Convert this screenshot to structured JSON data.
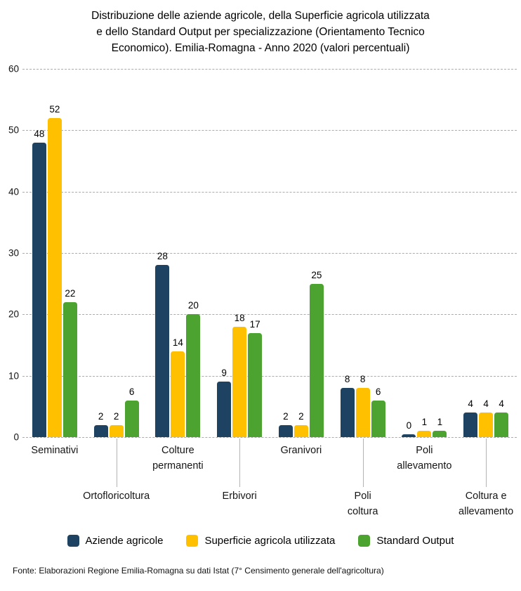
{
  "title": "Distribuzione delle aziende agricole, della Superficie agricola utilizzata\ne dello Standard Output per specializzazione (Orientamento Tecnico\nEconomico). Emilia-Romagna - Anno 2020 (valori percentuali)",
  "source": "Fonte: Elaborazioni Regione Emilia-Romagna su dati Istat (7° Censimento generale dell'agricoltura)",
  "colors": {
    "aziende": "#1E4362",
    "superficie": "#FFC000",
    "standard_output": "#4DA32F",
    "gridline": "#ABABAB",
    "category_tick": "#B3B3B3"
  },
  "chart_data": {
    "type": "bar",
    "title": "Distribuzione delle aziende agricole, della Superficie agricola utilizzata e dello Standard Output per specializzazione (Orientamento Tecnico Economico). Emilia-Romagna - Anno 2020 (valori percentuali)",
    "categories": [
      "Seminativi",
      "Ortofloricoltura",
      "Colture\npermanenti",
      "Erbivori",
      "Granivori",
      "Poli\ncoltura",
      "Poli\nallevamento",
      "Coltura e\nallevamento"
    ],
    "category_label_rows": [
      1,
      2,
      1,
      2,
      1,
      2,
      1,
      2
    ],
    "series": [
      {
        "name": "Aziende agricole",
        "color": "#1E4362",
        "values": [
          48,
          2,
          28,
          9,
          2,
          8,
          0,
          4
        ]
      },
      {
        "name": "Superficie agricola utilizzata",
        "color": "#FFC000",
        "values": [
          52,
          2,
          14,
          18,
          2,
          8,
          1,
          4
        ]
      },
      {
        "name": "Standard Output",
        "color": "#4DA32F",
        "values": [
          22,
          6,
          20,
          17,
          25,
          6,
          1,
          4
        ]
      }
    ],
    "xlabel": "",
    "ylabel": "",
    "ylim": [
      0,
      60
    ],
    "yticks": [
      0,
      10,
      20,
      30,
      40,
      50,
      60
    ],
    "grid": "horizontal-dashed",
    "legend_position": "bottom",
    "value_labels": true
  }
}
